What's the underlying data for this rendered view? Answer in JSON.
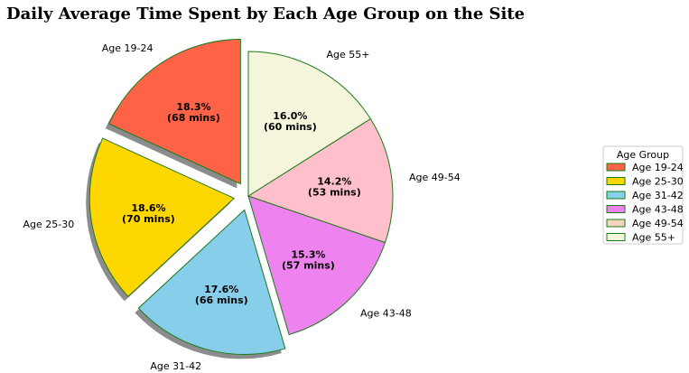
{
  "chart_data": {
    "type": "pie",
    "title": "Daily Average Time Spent by Each Age Group on the Site",
    "categories": [
      "Age 19-24",
      "Age 25-30",
      "Age 31-42",
      "Age 43-48",
      "Age 49-54",
      "Age 55+"
    ],
    "values": [
      68,
      70,
      66,
      57,
      53,
      60
    ],
    "percent_labels": [
      "18.3%",
      "18.6%",
      "17.6%",
      "15.3%",
      "14.2%",
      "16.0%"
    ],
    "minute_labels": [
      "(68 mins)",
      "(70 mins)",
      "(66 mins)",
      "(57 mins)",
      "(53 mins)",
      "(60 mins)"
    ],
    "exploded": [
      true,
      true,
      true,
      false,
      false,
      false
    ],
    "colors": [
      "#ff6347",
      "#ffd700",
      "#87ceeb",
      "#ee82ee",
      "#ffc0cb",
      "#f5f5dc"
    ],
    "legend_swatch_colors": [
      "#ff6347",
      "#ffd700",
      "#87ceeb",
      "#ee82ee",
      "#f5d5c0",
      "#f5f5dc"
    ],
    "edge_color": "#1a7a1a",
    "shadow": true,
    "legend": {
      "title": "Age Group",
      "position": "right"
    }
  }
}
